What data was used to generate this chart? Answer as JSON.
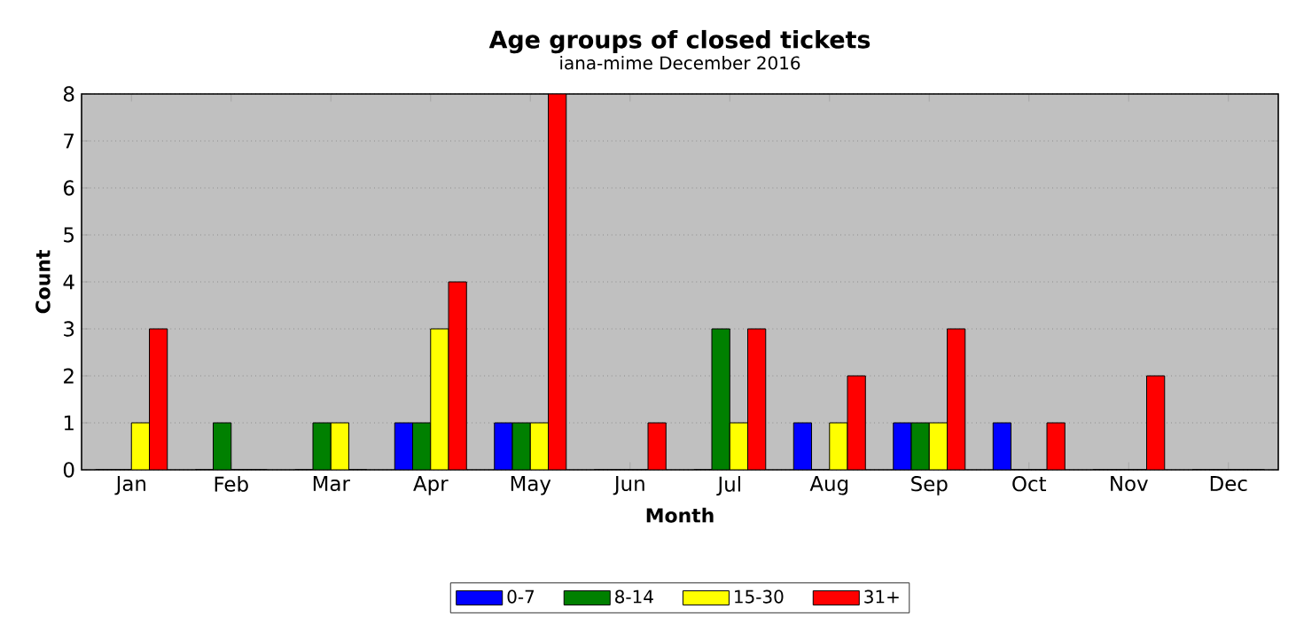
{
  "chart_data": {
    "type": "bar",
    "title": "Age groups of closed tickets",
    "subtitle": "iana-mime December 2016",
    "xlabel": "Month",
    "ylabel": "Count",
    "categories": [
      "Jan",
      "Feb",
      "Mar",
      "Apr",
      "May",
      "Jun",
      "Jul",
      "Aug",
      "Sep",
      "Oct",
      "Nov",
      "Dec"
    ],
    "series": [
      {
        "name": "0-7",
        "color": "#0000ff",
        "values": [
          0,
          0,
          0,
          1,
          1,
          0,
          0,
          1,
          1,
          1,
          0,
          0
        ]
      },
      {
        "name": "8-14",
        "color": "#008000",
        "values": [
          0,
          1,
          1,
          1,
          1,
          0,
          3,
          0,
          1,
          0,
          0,
          0
        ]
      },
      {
        "name": "15-30",
        "color": "#ffff00",
        "values": [
          1,
          0,
          1,
          3,
          1,
          0,
          1,
          1,
          1,
          0,
          0,
          0
        ]
      },
      {
        "name": "31+",
        "color": "#ff0000",
        "values": [
          3,
          0,
          0,
          4,
          8,
          1,
          3,
          2,
          3,
          1,
          2,
          0
        ]
      }
    ],
    "ylim": [
      0,
      8
    ],
    "yticks": [
      0,
      1,
      2,
      3,
      4,
      5,
      6,
      7,
      8
    ],
    "grid": "y",
    "legend": "bottom"
  }
}
